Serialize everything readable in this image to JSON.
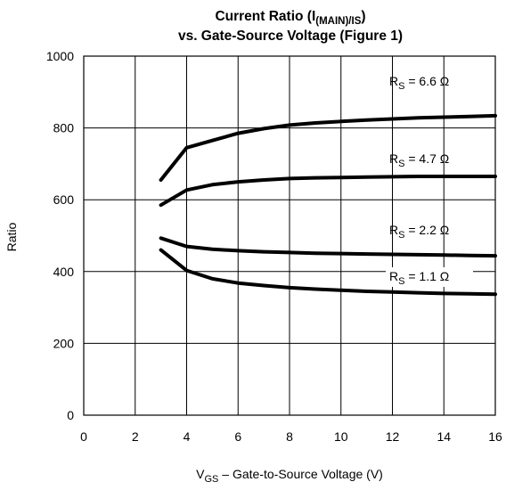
{
  "chart_data": {
    "type": "line",
    "title": {
      "line1_main": "Current Ratio (I",
      "line1_sub": "(MAIN)/IS",
      "line1_end": ")",
      "line2": "vs. Gate-Source Voltage (Figure 1)"
    },
    "xlabel": {
      "main": "V",
      "sub": "GS",
      "rest": " – Gate-to-Source Voltage (V)"
    },
    "ylabel": "Ratio",
    "xlim": [
      0,
      16
    ],
    "ylim": [
      0,
      1000
    ],
    "x_ticks": [
      "0",
      "2",
      "4",
      "6",
      "8",
      "10",
      "12",
      "14",
      "16"
    ],
    "y_ticks": [
      "0",
      "200",
      "400",
      "600",
      "800",
      "1000"
    ],
    "grid": true,
    "series": [
      {
        "name": {
          "prefix": "R",
          "sub": "S",
          "value": " = 6.6 Ω"
        },
        "x": [
          3,
          4,
          5,
          6,
          7,
          8,
          9,
          10,
          11,
          12,
          13,
          14,
          15,
          16
        ],
        "values": [
          655,
          745,
          765,
          785,
          798,
          808,
          814,
          818,
          822,
          825,
          828,
          830,
          832,
          834
        ]
      },
      {
        "name": {
          "prefix": "R",
          "sub": "S",
          "value": " = 4.7 Ω"
        },
        "x": [
          3,
          4,
          5,
          6,
          7,
          8,
          9,
          10,
          11,
          12,
          13,
          14,
          15,
          16
        ],
        "values": [
          585,
          627,
          642,
          650,
          655,
          659,
          661,
          662,
          663,
          664,
          665,
          665,
          665,
          665
        ]
      },
      {
        "name": {
          "prefix": "R",
          "sub": "S",
          "value": " = 2.2 Ω"
        },
        "x": [
          3,
          4,
          5,
          6,
          7,
          8,
          9,
          10,
          11,
          12,
          13,
          14,
          15,
          16
        ],
        "values": [
          493,
          470,
          462,
          458,
          455,
          453,
          451,
          450,
          449,
          448,
          447,
          446,
          445,
          444
        ]
      },
      {
        "name": {
          "prefix": "R",
          "sub": "S",
          "value": " = 1.1 Ω"
        },
        "x": [
          3,
          4,
          5,
          6,
          7,
          8,
          9,
          10,
          11,
          12,
          13,
          14,
          15,
          16
        ],
        "values": [
          460,
          403,
          380,
          368,
          361,
          355,
          351,
          348,
          345,
          343,
          341,
          339,
          338,
          337
        ]
      }
    ]
  }
}
